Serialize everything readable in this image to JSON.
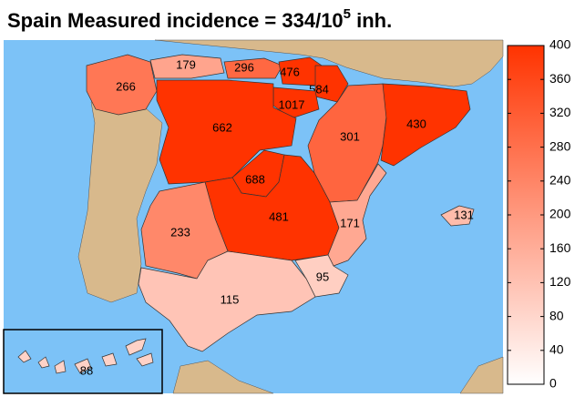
{
  "chart_data": {
    "type": "choropleth",
    "title": {
      "text": "Spain  Measured incidence = 334/10",
      "superscript": "5",
      "suffix": " inh."
    },
    "values": [
      266,
      179,
      296,
      476,
      584,
      1017,
      662,
      301,
      430,
      688,
      481,
      171,
      131,
      233,
      95,
      115,
      88
    ],
    "colorbar": {
      "lim": [
        0,
        400
      ],
      "ticks": [
        0,
        40,
        80,
        120,
        160,
        200,
        240,
        280,
        320,
        360,
        400
      ],
      "colors": [
        "#ffffff",
        "#ff3300"
      ]
    },
    "sea_color": "#7cc2f7",
    "land_color": "#d8b98c"
  }
}
